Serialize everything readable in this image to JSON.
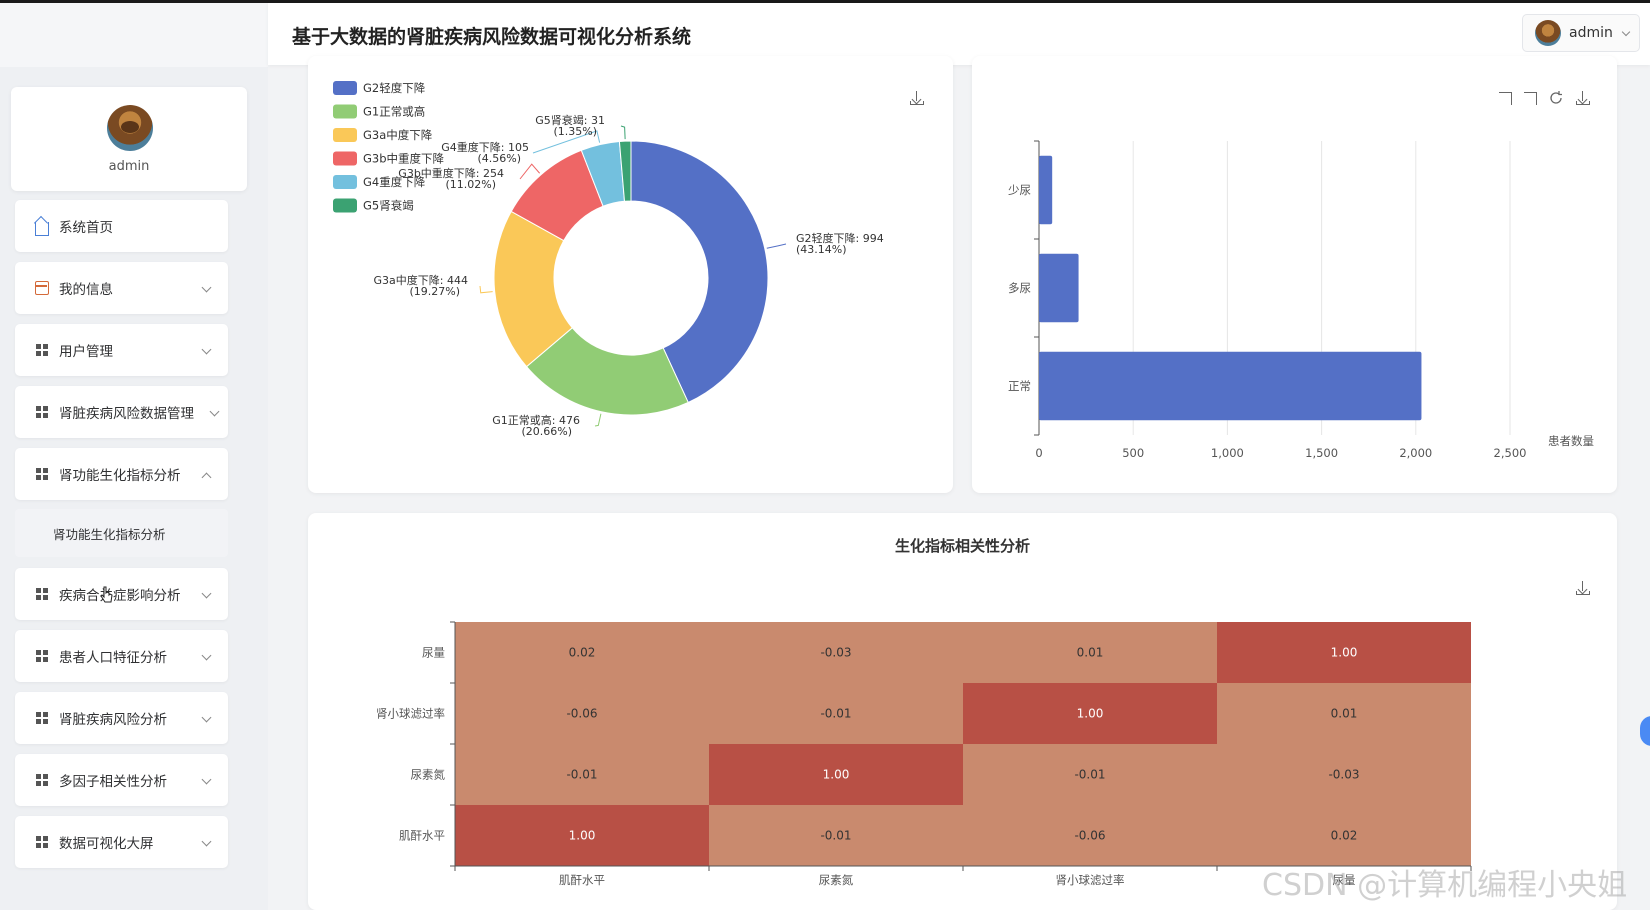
{
  "header": {
    "title": "基于大数据的肾脏疾病风险数据可视化分析系统",
    "user": "admin"
  },
  "sidebar": {
    "profile_name": "admin",
    "items": [
      {
        "label": "系统首页",
        "icon": "home-icon"
      },
      {
        "label": "我的信息",
        "icon": "id-card-icon"
      },
      {
        "label": "用户管理",
        "icon": "grid-icon"
      },
      {
        "label": "肾脏疾病风险数据管理",
        "icon": "grid-icon"
      },
      {
        "label": "肾功能生化指标分析",
        "icon": "grid-icon",
        "expanded": true
      },
      {
        "label": "疾病合并症影响分析",
        "icon": "grid-icon"
      },
      {
        "label": "患者人口特征分析",
        "icon": "grid-icon"
      },
      {
        "label": "肾脏疾病风险分析",
        "icon": "grid-icon"
      },
      {
        "label": "多因子相关性分析",
        "icon": "grid-icon"
      },
      {
        "label": "数据可视化大屏",
        "icon": "grid-icon"
      }
    ],
    "submenu_label": "肾功能生化指标分析"
  },
  "chart_data": [
    {
      "type": "pie",
      "donut": true,
      "legend_position": "top-left",
      "slices": [
        {
          "name": "G2轻度下降",
          "value": 994,
          "percent": "43.14%",
          "color": "#5470c6"
        },
        {
          "name": "G1正常或高",
          "value": 476,
          "percent": "20.66%",
          "color": "#91cc75"
        },
        {
          "name": "G3a中度下降",
          "value": 444,
          "percent": "19.27%",
          "color": "#fac858"
        },
        {
          "name": "G3b中重度下降",
          "value": 254,
          "percent": "11.02%",
          "color": "#ee6666"
        },
        {
          "name": "G4重度下降",
          "value": 105,
          "percent": "4.56%",
          "color": "#73c0de"
        },
        {
          "name": "G5肾衰竭",
          "value": 31,
          "percent": "1.35%",
          "color": "#3ba272"
        }
      ]
    },
    {
      "type": "bar",
      "orientation": "horizontal",
      "categories": [
        "少尿",
        "多尿",
        "正常"
      ],
      "values": [
        70,
        210,
        2030
      ],
      "xlabel": "患者数量",
      "xlim": [
        0,
        2500
      ],
      "x_ticks": [
        "0",
        "500",
        "1,000",
        "1,500",
        "2,000",
        "2,500"
      ],
      "color": "#5470c6"
    },
    {
      "type": "heatmap",
      "title": "生化指标相关性分析",
      "x_categories": [
        "肌酐水平",
        "尿素氮",
        "肾小球滤过率",
        "尿量"
      ],
      "y_categories": [
        "尿量",
        "肾小球滤过率",
        "尿素氮",
        "肌酐水平"
      ],
      "values": [
        [
          "0.02",
          "-0.03",
          "0.01",
          "1.00"
        ],
        [
          "-0.06",
          "-0.01",
          "1.00",
          "0.01"
        ],
        [
          "-0.01",
          "1.00",
          "-0.01",
          "-0.03"
        ],
        [
          "1.00",
          "-0.01",
          "-0.06",
          "0.02"
        ]
      ]
    }
  ],
  "watermark": "CSDN @计算机编程小央姐"
}
